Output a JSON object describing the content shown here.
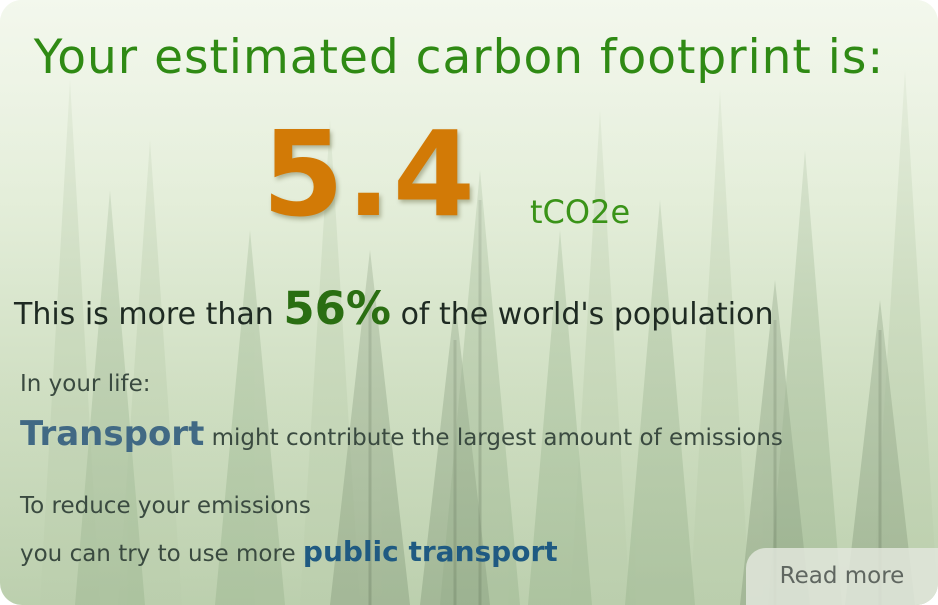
{
  "result": {
    "headline": "Your estimated carbon footprint is:",
    "value": "5.4",
    "unit": "tCO2e"
  },
  "comparison": {
    "prefix": "This is more than",
    "percent": "56%",
    "suffix": "of the world's population"
  },
  "life": {
    "label": "In your life:",
    "category": "Transport",
    "category_suffix": "might contribute the largest amount of emissions"
  },
  "reduce": {
    "line1": "To reduce your emissions",
    "line2_prefix": "you can try to use more",
    "tip": "public transport"
  },
  "actions": {
    "read_more": "Read more"
  },
  "colors": {
    "headline": "#2f8a14",
    "value": "#d27a06",
    "percent": "#2a6e12",
    "category": "#416984",
    "tip": "#1f5a82"
  }
}
